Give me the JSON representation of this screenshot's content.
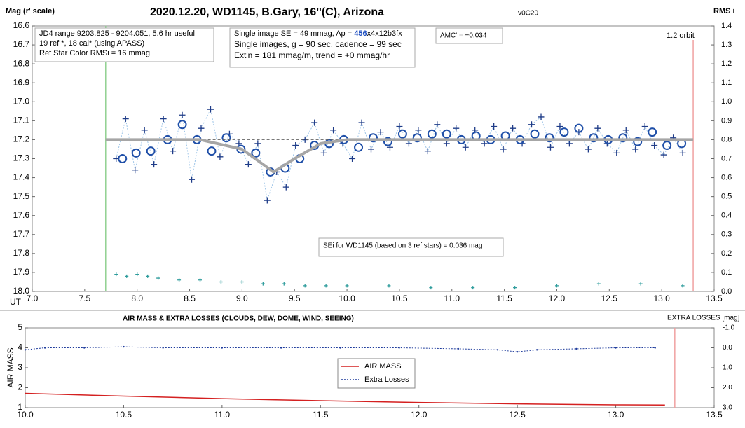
{
  "chart_data": [
    {
      "type": "line",
      "title": "2020.12.20, WD1145, B.Gary, 16''(C), Arizona",
      "subtitle": "- v0C20",
      "ylabel": "Mag (r' scale)",
      "y2label": "RMS i",
      "xlabel": "UT=",
      "xlim": [
        7,
        13.5
      ],
      "xticks": [
        {
          "value": 7,
          "label": "7.0"
        },
        7.5,
        {
          "value": 8,
          "label": "8.0"
        },
        8.5,
        {
          "value": 9,
          "label": "9.0"
        },
        9.5,
        {
          "value": 10,
          "label": "10.0"
        },
        10.5,
        {
          "value": 11,
          "label": "11.0"
        },
        11.5,
        {
          "value": 12,
          "label": "12.0"
        },
        12.5,
        {
          "value": 13,
          "label": "13.0"
        },
        13.5
      ],
      "ylim": [
        16.6,
        18.0
      ],
      "y_inverted": true,
      "yticks": [
        16.6,
        16.7,
        16.8,
        16.9,
        {
          "value": 17,
          "label": "17.0"
        },
        17.1,
        17.2,
        17.3,
        17.4,
        17.5,
        17.6,
        17.7,
        17.8,
        17.9,
        {
          "value": 18,
          "label": "18.0"
        }
      ],
      "y2lim": [
        0,
        1.4
      ],
      "y2_inverted": false,
      "y2ticks": [
        {
          "value": 0,
          "label": "0.0"
        },
        0.1,
        0.2,
        0.3,
        0.4,
        0.5,
        0.6,
        0.7,
        0.8,
        0.9,
        {
          "value": 1,
          "label": "1.0"
        },
        1.1,
        1.2,
        1.3,
        1.4
      ],
      "series": [
        {
          "marker": "plus",
          "line": "dotted",
          "color": "#1f3c88",
          "line_color": "#9ec5e8",
          "x": [
            7.8,
            7.89,
            7.98,
            8.07,
            8.16,
            8.25,
            8.34,
            8.43,
            8.52,
            8.61,
            8.7,
            8.79,
            8.88,
            8.97,
            9.06,
            9.15,
            9.24,
            9.33,
            9.42,
            9.51,
            9.6,
            9.69,
            9.78,
            9.87,
            9.96,
            10.05,
            10.14,
            10.23,
            10.32,
            10.41,
            10.5,
            10.59,
            10.68,
            10.77,
            10.86,
            10.95,
            11.04,
            11.13,
            11.22,
            11.31,
            11.4,
            11.49,
            11.58,
            11.67,
            11.76,
            11.85,
            11.94,
            12.03,
            12.12,
            12.21,
            12.3,
            12.39,
            12.48,
            12.57,
            12.66,
            12.75,
            12.84,
            12.93,
            13.02,
            13.11,
            13.2
          ],
          "values": [
            17.3,
            17.09,
            17.36,
            17.15,
            17.33,
            17.09,
            17.26,
            17.07,
            17.41,
            17.14,
            17.04,
            17.29,
            17.17,
            17.22,
            17.33,
            17.22,
            17.52,
            17.37,
            17.45,
            17.23,
            17.2,
            17.11,
            17.27,
            17.15,
            17.22,
            17.3,
            17.11,
            17.25,
            17.16,
            17.24,
            17.13,
            17.22,
            17.15,
            17.26,
            17.12,
            17.22,
            17.14,
            17.24,
            17.15,
            17.22,
            17.13,
            17.25,
            17.14,
            17.22,
            17.12,
            17.08,
            17.24,
            17.13,
            17.22,
            17.16,
            17.25,
            17.14,
            17.22,
            17.27,
            17.15,
            17.25,
            17.13,
            17.23,
            17.28,
            17.19,
            17.27
          ]
        },
        {
          "marker": "circle",
          "line": null,
          "color": "#1f4fa8",
          "x": [
            7.86,
            7.99,
            8.13,
            8.29,
            8.43,
            8.57,
            8.71,
            8.85,
            8.99,
            9.13,
            9.27,
            9.41,
            9.55,
            9.69,
            9.83,
            9.97,
            10.11,
            10.25,
            10.39,
            10.53,
            10.67,
            10.81,
            10.95,
            11.09,
            11.23,
            11.37,
            11.51,
            11.65,
            11.79,
            11.93,
            12.07,
            12.21,
            12.35,
            12.49,
            12.63,
            12.77,
            12.91,
            13.05,
            13.19
          ],
          "values": [
            17.3,
            17.27,
            17.26,
            17.2,
            17.12,
            17.2,
            17.26,
            17.19,
            17.25,
            17.27,
            17.37,
            17.35,
            17.3,
            17.23,
            17.22,
            17.2,
            17.24,
            17.19,
            17.21,
            17.17,
            17.19,
            17.17,
            17.17,
            17.2,
            17.18,
            17.2,
            17.18,
            17.2,
            17.17,
            17.19,
            17.16,
            17.14,
            17.19,
            17.2,
            17.19,
            17.21,
            17.16,
            17.23,
            17.22
          ]
        },
        {
          "marker": null,
          "line": "dashed",
          "color": "#666666",
          "x": [
            8.3,
            13.3
          ],
          "values": [
            17.2,
            17.2
          ]
        },
        {
          "marker": null,
          "line": "thick",
          "color": "#a6a6a6",
          "x": [
            7.7,
            8.6,
            9.0,
            9.3,
            9.5,
            9.75,
            10.0,
            13.3
          ],
          "values": [
            17.2,
            17.2,
            17.25,
            17.37,
            17.3,
            17.22,
            17.2,
            17.2
          ]
        },
        {
          "marker": "small-plus",
          "line": null,
          "color": "#2e9c9c",
          "axis": "y2",
          "x": [
            7.8,
            7.9,
            8.0,
            8.1,
            8.2,
            8.4,
            8.6,
            8.8,
            9.0,
            9.2,
            9.4,
            9.6,
            9.8,
            10.0,
            10.4,
            10.8,
            11.2,
            11.6,
            12.0,
            12.4,
            12.8,
            13.2
          ],
          "values": [
            0.09,
            0.08,
            0.09,
            0.08,
            0.07,
            0.06,
            0.06,
            0.05,
            0.05,
            0.04,
            0.04,
            0.03,
            0.03,
            0.03,
            0.03,
            0.02,
            0.02,
            0.02,
            0.03,
            0.04,
            0.04,
            0.03
          ]
        }
      ],
      "vlines": [
        {
          "x": 7.7,
          "color": "#90d090"
        },
        {
          "x": 13.3,
          "color": "#f0a0a0",
          "label": "1.2 orbit"
        }
      ],
      "annotations": [
        [
          "JD4 range 9203.825 - 9204.051, 5.6 hr useful",
          " 19 ref *, 18 cal* (using APASS)",
          "Ref Star Color RMSi = 16 mmag"
        ],
        [
          [
            "Single image SE = 49 mmag, Ap = ",
            "456",
            "x4x12b3fx"
          ],
          "Single images, g = 90 sec, cadence = 99 sec",
          "Ext'n = 181 mmag/m, trend = +0 mmag/hr"
        ],
        [
          "AMC' = +0.034"
        ],
        [
          "SEi for WD1145 (based on 3 ref stars) = 0.036 mag"
        ]
      ]
    },
    {
      "type": "line",
      "title": "AIR MASS & EXTRA LOSSES (CLOUDS, DEW, DOME, WIND, SEEING)",
      "ylabel": "AIR MASS",
      "y2label": "EXTRA LOSSES [mag]",
      "xlim": [
        10,
        13.5
      ],
      "xticks": [
        {
          "value": 10,
          "label": "10.0"
        },
        10.5,
        {
          "value": 11,
          "label": "11.0"
        },
        11.5,
        {
          "value": 12,
          "label": "12.0"
        },
        12.5,
        {
          "value": 13,
          "label": "13.0"
        },
        13.5
      ],
      "ylim": [
        1,
        5
      ],
      "y_inverted": false,
      "yticks": [
        1,
        2,
        3,
        4,
        5
      ],
      "y2lim": [
        -1,
        3
      ],
      "y2_inverted": true,
      "y2ticks": [
        {
          "value": -1,
          "label": "-1.0"
        },
        {
          "value": 0,
          "label": "0.0"
        },
        {
          "value": 1,
          "label": "1.0"
        },
        {
          "value": 2,
          "label": "2.0"
        },
        {
          "value": 3,
          "label": "3.0"
        }
      ],
      "series": [
        {
          "name": "AIR MASS",
          "marker": null,
          "line": "solid",
          "color": "#d42020",
          "x": [
            10.0,
            10.5,
            11.0,
            11.5,
            12.0,
            12.5,
            13.0,
            13.25
          ],
          "values": [
            1.72,
            1.58,
            1.45,
            1.35,
            1.26,
            1.19,
            1.14,
            1.13
          ]
        },
        {
          "name": "Extra Losses",
          "marker": "dot",
          "line": "dotted",
          "color": "#1f3c9c",
          "axis": "y2",
          "x": [
            10.0,
            10.1,
            10.3,
            10.5,
            10.7,
            11.0,
            11.3,
            11.6,
            11.9,
            12.2,
            12.4,
            12.5,
            12.6,
            12.8,
            13.0,
            13.2
          ],
          "values": [
            0.1,
            0.0,
            0.0,
            -0.05,
            0.0,
            0.0,
            0.0,
            0.0,
            0.0,
            0.05,
            0.1,
            0.2,
            0.1,
            0.05,
            0.0,
            0.0
          ]
        }
      ],
      "vlines": [
        {
          "x": 13.3,
          "color": "#f0a0a0"
        }
      ],
      "legend": "center"
    }
  ]
}
